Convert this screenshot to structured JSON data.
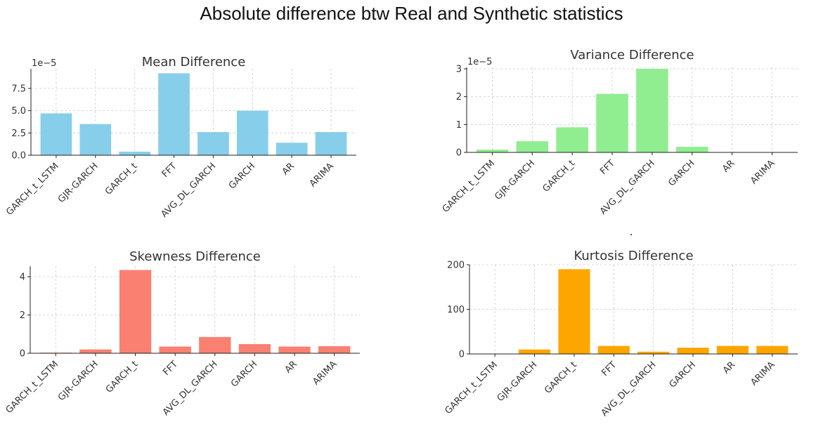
{
  "suptitle": "Absolute difference btw Real and Synthetic statistics",
  "chart_data": [
    {
      "type": "bar",
      "title": "Mean Difference",
      "categories": [
        "GARCH_t_LSTM",
        "GJR-GARCH",
        "GARCH_t",
        "FFT",
        "AVG_DL_GARCH",
        "GARCH",
        "AR",
        "ARIMA"
      ],
      "values": [
        4.7,
        3.5,
        0.4,
        9.2,
        2.6,
        5.0,
        1.4,
        2.6
      ],
      "scale_label": "1e−5",
      "yticks": [
        "0.0",
        "2.5",
        "5.0",
        "7.5"
      ],
      "ylim": [
        0,
        9.7
      ],
      "color": "#87ceeb",
      "grid": true,
      "xlabel": "",
      "ylabel": ""
    },
    {
      "type": "bar",
      "title": "Variance Difference",
      "categories": [
        "GARCH_t_LSTM",
        "GJR-GARCH",
        "GARCH_t",
        "FFT",
        "AVG_DL_GARCH",
        "GARCH",
        "AR",
        "ARIMA"
      ],
      "values": [
        0.1,
        0.4,
        0.9,
        2.1,
        3.0,
        0.2,
        0.0,
        0.0
      ],
      "scale_label": "1e−5",
      "yticks": [
        "0",
        "1",
        "2",
        "3"
      ],
      "ylim": [
        0,
        3.05
      ],
      "color": "#90ee90",
      "grid": true,
      "xlabel": "",
      "ylabel": ""
    },
    {
      "type": "bar",
      "title": "Skewness Difference",
      "categories": [
        "GARCH_t_LSTM",
        "GJR-GARCH",
        "GARCH_t",
        "FFT",
        "AVG_DL_GARCH",
        "GARCH",
        "AR",
        "ARIMA"
      ],
      "values": [
        0.03,
        0.2,
        4.35,
        0.35,
        0.85,
        0.48,
        0.35,
        0.37
      ],
      "scale_label": "",
      "yticks": [
        "0",
        "2",
        "4"
      ],
      "ylim": [
        0,
        4.55
      ],
      "color": "#fa8072",
      "grid": true,
      "xlabel": "",
      "ylabel": ""
    },
    {
      "type": "bar",
      "title": "Kurtosis Difference",
      "categories": [
        "GARCH_t_LSTM",
        "GJR-GARCH",
        "GARCH_t",
        "FFT",
        "AVG_DL_GARCH",
        "GARCH",
        "AR",
        "ARIMA"
      ],
      "values": [
        0.0,
        10,
        190,
        18,
        5,
        14,
        18,
        18
      ],
      "scale_label": "",
      "yticks": [
        "0",
        "100",
        "200"
      ],
      "ylim": [
        0,
        200
      ],
      "color": "#ffa500",
      "grid": true,
      "xlabel": "",
      "ylabel": ""
    }
  ]
}
